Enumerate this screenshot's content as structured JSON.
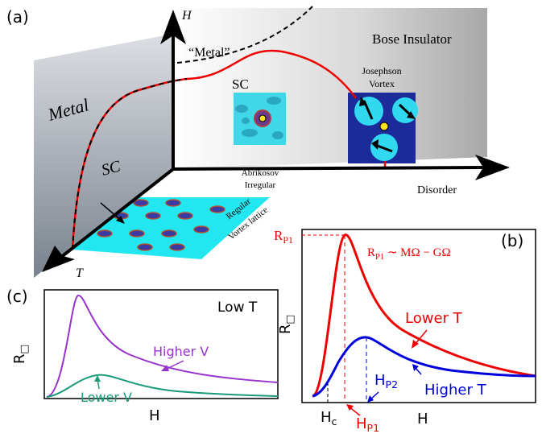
{
  "panel_a": {
    "label": "(a)",
    "h_axis": "H",
    "t_axis": "T",
    "disorder_axis": "Disorder",
    "metal_wall": "Metal",
    "sc_wall": "SC",
    "metal_phase": "“Metal”",
    "bose_insulator": "Bose Insulator",
    "sc_inset": "SC",
    "josephson_vortex": [
      "Josephson",
      "Vortex"
    ],
    "abrikosov_irregular": [
      "Abrikosov",
      "Irregular"
    ],
    "regular_lattice": [
      "Regular",
      "Vortex lattice"
    ]
  },
  "panel_b": {
    "label": "(b)",
    "y_label": {
      "base": "R",
      "sub": "□"
    },
    "x_label": "H",
    "rp1_tick": {
      "base": "R",
      "sub": "P1"
    },
    "formula": {
      "base": "R",
      "sub": "P1",
      "rest": " ∼ MΩ − GΩ"
    },
    "lower_t": "Lower  T",
    "higher_t": "Higher  T",
    "hp2": {
      "base": "H",
      "sub": "P2"
    },
    "hc": {
      "base": "H",
      "sub": "c"
    },
    "hp1": {
      "base": "H",
      "sub": "P1"
    }
  },
  "panel_c": {
    "label": "(c)",
    "y_label": {
      "base": "R",
      "sub": "□"
    },
    "x_label": "H",
    "low_t": "Low  T",
    "higher_v": "Higher  V",
    "lower_v": "Lower  V"
  }
}
